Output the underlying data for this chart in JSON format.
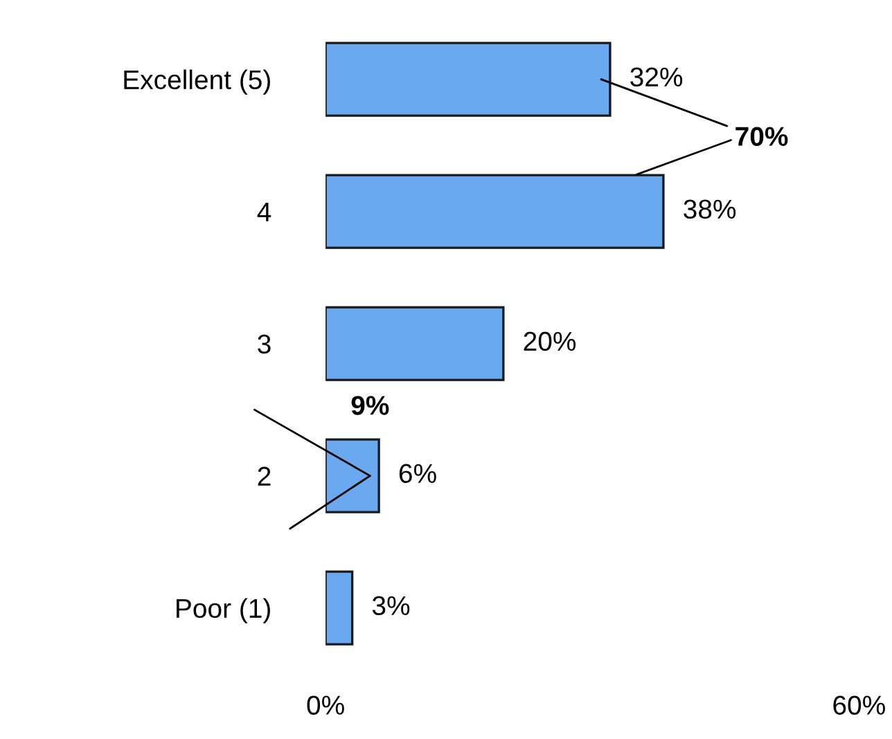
{
  "chart_data": {
    "type": "bar",
    "orientation": "horizontal",
    "categories": [
      "Excellent (5)",
      "4",
      "3",
      "2",
      "Poor (1)"
    ],
    "values": [
      32,
      38,
      20,
      6,
      3
    ],
    "value_labels": [
      "32%",
      "38%",
      "20%",
      "6%",
      "3%"
    ],
    "color": "#6aa8ef",
    "xlim": [
      0,
      60
    ],
    "xticks": [
      {
        "value": 0,
        "label": "0%"
      },
      {
        "value": 60,
        "label": "60%"
      }
    ],
    "annotations": [
      {
        "text": "70%",
        "x": 32,
        "y": "Excellent (5)"
      },
      {
        "text": "9%",
        "x": 6,
        "y": "2"
      }
    ],
    "grid": false,
    "legend": false
  }
}
